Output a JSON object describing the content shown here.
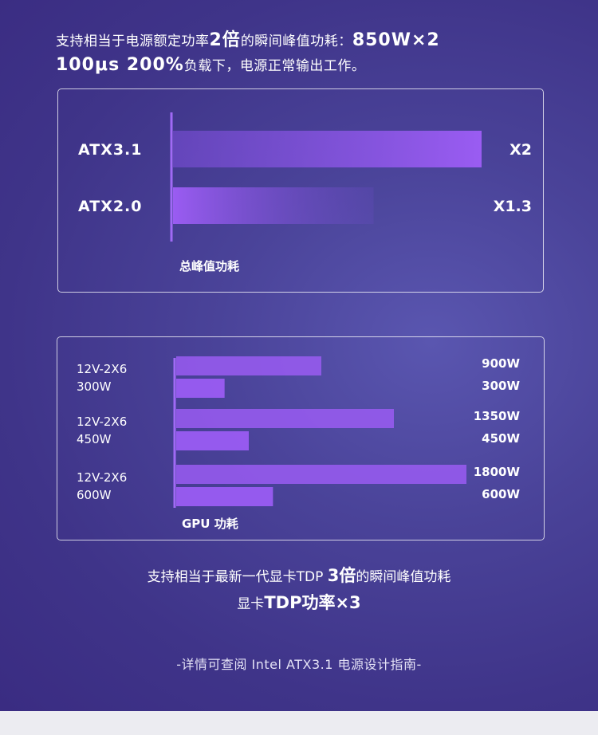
{
  "intro": {
    "line1_pre": "支持相当于电源额定功率",
    "line1_bold": "2倍",
    "line1_mid": "的瞬间峰值功耗：",
    "line1_bold2": "850W×2",
    "line2_bold": "100μs 200%",
    "line2_post": "负载下，电源正常输出工作。"
  },
  "colors": {
    "bar_main": "#9a5cf2",
    "bar_fade": "#6a4bc4",
    "axis_line": "#a06af5",
    "panel_bg": "#43388f"
  },
  "chart_data": [
    {
      "type": "bar",
      "orientation": "horizontal",
      "categories": [
        "ATX3.1",
        "ATX2.0"
      ],
      "values": [
        2,
        1.3
      ],
      "value_labels": [
        "X2",
        "X1.3"
      ],
      "xlabel": "总峰值功耗",
      "xlim": [
        0,
        2.1
      ],
      "grid": false
    },
    {
      "type": "bar",
      "orientation": "horizontal",
      "categories": [
        {
          "line1": "12V-2X6",
          "line2": "300W"
        },
        {
          "line1": "12V-2X6",
          "line2": "450W"
        },
        {
          "line1": "12V-2X6",
          "line2": "600W"
        }
      ],
      "series": [
        {
          "values": [
            900,
            1350,
            1800
          ],
          "labels": [
            "900W",
            "1350W",
            "1800W"
          ]
        },
        {
          "values": [
            300,
            450,
            600
          ],
          "labels": [
            "300W",
            "450W",
            "600W"
          ]
        }
      ],
      "xlabel": "GPU 功耗",
      "xlim": [
        0,
        1800
      ],
      "grid": false
    }
  ],
  "outro": {
    "line1_pre": "支持相当于最新一代显卡TDP ",
    "line1_bold": "3倍",
    "line1_post": "的瞬间峰值功耗",
    "line2_pre": "显卡",
    "line2_bold": "TDP功率×3"
  },
  "footnote": "-详情可查阅 Intel ATX3.1 电源设计指南-"
}
